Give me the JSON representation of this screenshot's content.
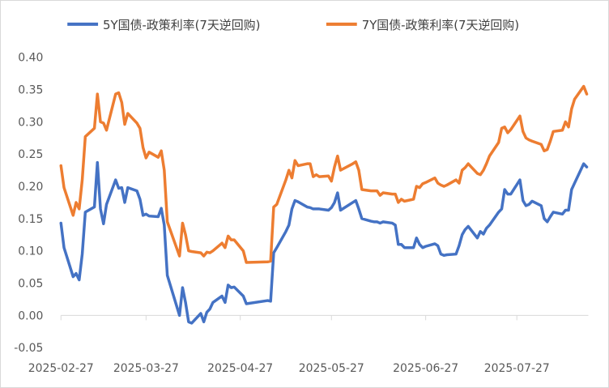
{
  "chart_data": {
    "type": "line",
    "title": "",
    "xlabel": "",
    "ylabel": "",
    "ylim": [
      -0.05,
      0.4
    ],
    "yticks": [
      "0.40",
      "0.35",
      "0.30",
      "0.25",
      "0.20",
      "0.15",
      "0.10",
      "0.05",
      "0.00",
      "-0.05"
    ],
    "xticks": [
      "2025-02-27",
      "2025-03-27",
      "2025-04-27",
      "2025-05-27",
      "2025-06-27",
      "2025-07-27"
    ],
    "legend_position": "top",
    "grid": false,
    "series": [
      {
        "name": "5Y国债-政策利率(7天逆回购)",
        "color": "#4472c4",
        "points": [
          [
            "2025-02-27",
            0.143
          ],
          [
            "2025-02-28",
            0.105
          ],
          [
            "2025-03-03",
            0.06
          ],
          [
            "2025-03-04",
            0.065
          ],
          [
            "2025-03-05",
            0.055
          ],
          [
            "2025-03-06",
            0.095
          ],
          [
            "2025-03-07",
            0.16
          ],
          [
            "2025-03-10",
            0.168
          ],
          [
            "2025-03-11",
            0.237
          ],
          [
            "2025-03-12",
            0.165
          ],
          [
            "2025-03-13",
            0.142
          ],
          [
            "2025-03-14",
            0.172
          ],
          [
            "2025-03-17",
            0.21
          ],
          [
            "2025-03-18",
            0.197
          ],
          [
            "2025-03-19",
            0.198
          ],
          [
            "2025-03-20",
            0.175
          ],
          [
            "2025-03-21",
            0.198
          ],
          [
            "2025-03-24",
            0.193
          ],
          [
            "2025-03-25",
            0.18
          ],
          [
            "2025-03-26",
            0.155
          ],
          [
            "2025-03-27",
            0.157
          ],
          [
            "2025-03-28",
            0.154
          ],
          [
            "2025-03-31",
            0.153
          ],
          [
            "2025-04-01",
            0.166
          ],
          [
            "2025-04-02",
            0.14
          ],
          [
            "2025-04-03",
            0.062
          ],
          [
            "2025-04-07",
            0.0
          ],
          [
            "2025-04-08",
            0.043
          ],
          [
            "2025-04-09",
            0.02
          ],
          [
            "2025-04-10",
            -0.01
          ],
          [
            "2025-04-11",
            -0.012
          ],
          [
            "2025-04-14",
            0.003
          ],
          [
            "2025-04-15",
            -0.01
          ],
          [
            "2025-04-16",
            0.005
          ],
          [
            "2025-04-17",
            0.01
          ],
          [
            "2025-04-18",
            0.02
          ],
          [
            "2025-04-21",
            0.03
          ],
          [
            "2025-04-22",
            0.02
          ],
          [
            "2025-04-23",
            0.047
          ],
          [
            "2025-04-24",
            0.043
          ],
          [
            "2025-04-25",
            0.044
          ],
          [
            "2025-04-28",
            0.03
          ],
          [
            "2025-04-29",
            0.018
          ],
          [
            "2025-05-06",
            0.023
          ],
          [
            "2025-05-07",
            0.022
          ],
          [
            "2025-05-08",
            0.097
          ],
          [
            "2025-05-09",
            0.105
          ],
          [
            "2025-05-12",
            0.13
          ],
          [
            "2025-05-13",
            0.14
          ],
          [
            "2025-05-14",
            0.165
          ],
          [
            "2025-05-15",
            0.178
          ],
          [
            "2025-05-16",
            0.176
          ],
          [
            "2025-05-19",
            0.168
          ],
          [
            "2025-05-20",
            0.167
          ],
          [
            "2025-05-21",
            0.165
          ],
          [
            "2025-05-22",
            0.165
          ],
          [
            "2025-05-23",
            0.165
          ],
          [
            "2025-05-26",
            0.163
          ],
          [
            "2025-05-27",
            0.167
          ],
          [
            "2025-05-28",
            0.175
          ],
          [
            "2025-05-29",
            0.19
          ],
          [
            "2025-05-30",
            0.163
          ],
          [
            "2025-06-03",
            0.175
          ],
          [
            "2025-06-04",
            0.178
          ],
          [
            "2025-06-05",
            0.165
          ],
          [
            "2025-06-06",
            0.15
          ],
          [
            "2025-06-09",
            0.146
          ],
          [
            "2025-06-10",
            0.145
          ],
          [
            "2025-06-11",
            0.145
          ],
          [
            "2025-06-12",
            0.143
          ],
          [
            "2025-06-13",
            0.145
          ],
          [
            "2025-06-16",
            0.143
          ],
          [
            "2025-06-17",
            0.14
          ],
          [
            "2025-06-18",
            0.11
          ],
          [
            "2025-06-19",
            0.11
          ],
          [
            "2025-06-20",
            0.105
          ],
          [
            "2025-06-23",
            0.105
          ],
          [
            "2025-06-24",
            0.12
          ],
          [
            "2025-06-25",
            0.11
          ],
          [
            "2025-06-26",
            0.105
          ],
          [
            "2025-06-27",
            0.107
          ],
          [
            "2025-06-30",
            0.111
          ],
          [
            "2025-07-01",
            0.108
          ],
          [
            "2025-07-02",
            0.095
          ],
          [
            "2025-07-03",
            0.093
          ],
          [
            "2025-07-04",
            0.094
          ],
          [
            "2025-07-07",
            0.095
          ],
          [
            "2025-07-08",
            0.108
          ],
          [
            "2025-07-09",
            0.125
          ],
          [
            "2025-07-10",
            0.133
          ],
          [
            "2025-07-11",
            0.138
          ],
          [
            "2025-07-14",
            0.12
          ],
          [
            "2025-07-15",
            0.13
          ],
          [
            "2025-07-16",
            0.126
          ],
          [
            "2025-07-17",
            0.135
          ],
          [
            "2025-07-18",
            0.14
          ],
          [
            "2025-07-21",
            0.16
          ],
          [
            "2025-07-22",
            0.165
          ],
          [
            "2025-07-23",
            0.195
          ],
          [
            "2025-07-24",
            0.188
          ],
          [
            "2025-07-25",
            0.188
          ],
          [
            "2025-07-28",
            0.21
          ],
          [
            "2025-07-29",
            0.178
          ],
          [
            "2025-07-30",
            0.17
          ],
          [
            "2025-07-31",
            0.172
          ],
          [
            "2025-08-01",
            0.177
          ],
          [
            "2025-08-04",
            0.17
          ],
          [
            "2025-08-05",
            0.15
          ],
          [
            "2025-08-06",
            0.145
          ],
          [
            "2025-08-07",
            0.153
          ],
          [
            "2025-08-08",
            0.16
          ],
          [
            "2025-08-11",
            0.157
          ],
          [
            "2025-08-12",
            0.163
          ],
          [
            "2025-08-13",
            0.163
          ],
          [
            "2025-08-14",
            0.195
          ],
          [
            "2025-08-15",
            0.205
          ],
          [
            "2025-08-18",
            0.235
          ],
          [
            "2025-08-19",
            0.23
          ]
        ]
      },
      {
        "name": "7Y国债-政策利率(7天逆回购)",
        "color": "#ed7d31",
        "points": [
          [
            "2025-02-27",
            0.232
          ],
          [
            "2025-02-28",
            0.198
          ],
          [
            "2025-03-03",
            0.155
          ],
          [
            "2025-03-04",
            0.175
          ],
          [
            "2025-03-05",
            0.165
          ],
          [
            "2025-03-06",
            0.21
          ],
          [
            "2025-03-07",
            0.277
          ],
          [
            "2025-03-10",
            0.29
          ],
          [
            "2025-03-11",
            0.343
          ],
          [
            "2025-03-12",
            0.3
          ],
          [
            "2025-03-13",
            0.298
          ],
          [
            "2025-03-14",
            0.287
          ],
          [
            "2025-03-17",
            0.343
          ],
          [
            "2025-03-18",
            0.345
          ],
          [
            "2025-03-19",
            0.33
          ],
          [
            "2025-03-20",
            0.296
          ],
          [
            "2025-03-21",
            0.313
          ],
          [
            "2025-03-24",
            0.298
          ],
          [
            "2025-03-25",
            0.29
          ],
          [
            "2025-03-26",
            0.26
          ],
          [
            "2025-03-27",
            0.244
          ],
          [
            "2025-03-28",
            0.253
          ],
          [
            "2025-03-31",
            0.245
          ],
          [
            "2025-04-01",
            0.255
          ],
          [
            "2025-04-02",
            0.225
          ],
          [
            "2025-04-03",
            0.145
          ],
          [
            "2025-04-07",
            0.092
          ],
          [
            "2025-04-08",
            0.143
          ],
          [
            "2025-04-09",
            0.125
          ],
          [
            "2025-04-10",
            0.1
          ],
          [
            "2025-04-11",
            0.099
          ],
          [
            "2025-04-14",
            0.097
          ],
          [
            "2025-04-15",
            0.092
          ],
          [
            "2025-04-16",
            0.098
          ],
          [
            "2025-04-17",
            0.097
          ],
          [
            "2025-04-18",
            0.1
          ],
          [
            "2025-04-21",
            0.112
          ],
          [
            "2025-04-22",
            0.105
          ],
          [
            "2025-04-23",
            0.123
          ],
          [
            "2025-04-24",
            0.117
          ],
          [
            "2025-04-25",
            0.117
          ],
          [
            "2025-04-28",
            0.1
          ],
          [
            "2025-04-29",
            0.082
          ],
          [
            "2025-05-06",
            0.083
          ],
          [
            "2025-05-07",
            0.084
          ],
          [
            "2025-05-08",
            0.168
          ],
          [
            "2025-05-09",
            0.172
          ],
          [
            "2025-05-12",
            0.21
          ],
          [
            "2025-05-13",
            0.225
          ],
          [
            "2025-05-14",
            0.213
          ],
          [
            "2025-05-15",
            0.24
          ],
          [
            "2025-05-16",
            0.232
          ],
          [
            "2025-05-19",
            0.235
          ],
          [
            "2025-05-20",
            0.235
          ],
          [
            "2025-05-21",
            0.215
          ],
          [
            "2025-05-22",
            0.218
          ],
          [
            "2025-05-23",
            0.215
          ],
          [
            "2025-05-26",
            0.216
          ],
          [
            "2025-05-27",
            0.208
          ],
          [
            "2025-05-28",
            0.23
          ],
          [
            "2025-05-29",
            0.247
          ],
          [
            "2025-05-30",
            0.225
          ],
          [
            "2025-06-03",
            0.235
          ],
          [
            "2025-06-04",
            0.238
          ],
          [
            "2025-06-05",
            0.225
          ],
          [
            "2025-06-06",
            0.195
          ],
          [
            "2025-06-09",
            0.193
          ],
          [
            "2025-06-10",
            0.193
          ],
          [
            "2025-06-11",
            0.193
          ],
          [
            "2025-06-12",
            0.186
          ],
          [
            "2025-06-13",
            0.19
          ],
          [
            "2025-06-16",
            0.188
          ],
          [
            "2025-06-17",
            0.188
          ],
          [
            "2025-06-18",
            0.175
          ],
          [
            "2025-06-19",
            0.18
          ],
          [
            "2025-06-20",
            0.177
          ],
          [
            "2025-06-23",
            0.18
          ],
          [
            "2025-06-24",
            0.2
          ],
          [
            "2025-06-25",
            0.198
          ],
          [
            "2025-06-26",
            0.204
          ],
          [
            "2025-06-27",
            0.206
          ],
          [
            "2025-06-30",
            0.213
          ],
          [
            "2025-07-01",
            0.205
          ],
          [
            "2025-07-02",
            0.202
          ],
          [
            "2025-07-03",
            0.2
          ],
          [
            "2025-07-04",
            0.202
          ],
          [
            "2025-07-07",
            0.21
          ],
          [
            "2025-07-08",
            0.205
          ],
          [
            "2025-07-09",
            0.225
          ],
          [
            "2025-07-10",
            0.229
          ],
          [
            "2025-07-11",
            0.235
          ],
          [
            "2025-07-14",
            0.22
          ],
          [
            "2025-07-15",
            0.218
          ],
          [
            "2025-07-16",
            0.225
          ],
          [
            "2025-07-17",
            0.235
          ],
          [
            "2025-07-18",
            0.247
          ],
          [
            "2025-07-21",
            0.268
          ],
          [
            "2025-07-22",
            0.29
          ],
          [
            "2025-07-23",
            0.292
          ],
          [
            "2025-07-24",
            0.283
          ],
          [
            "2025-07-25",
            0.288
          ],
          [
            "2025-07-28",
            0.309
          ],
          [
            "2025-07-29",
            0.285
          ],
          [
            "2025-07-30",
            0.275
          ],
          [
            "2025-07-31",
            0.272
          ],
          [
            "2025-08-01",
            0.27
          ],
          [
            "2025-08-04",
            0.265
          ],
          [
            "2025-08-05",
            0.255
          ],
          [
            "2025-08-06",
            0.257
          ],
          [
            "2025-08-07",
            0.27
          ],
          [
            "2025-08-08",
            0.285
          ],
          [
            "2025-08-11",
            0.287
          ],
          [
            "2025-08-12",
            0.3
          ],
          [
            "2025-08-13",
            0.292
          ],
          [
            "2025-08-14",
            0.32
          ],
          [
            "2025-08-15",
            0.335
          ],
          [
            "2025-08-18",
            0.355
          ],
          [
            "2025-08-19",
            0.343
          ]
        ]
      }
    ]
  }
}
